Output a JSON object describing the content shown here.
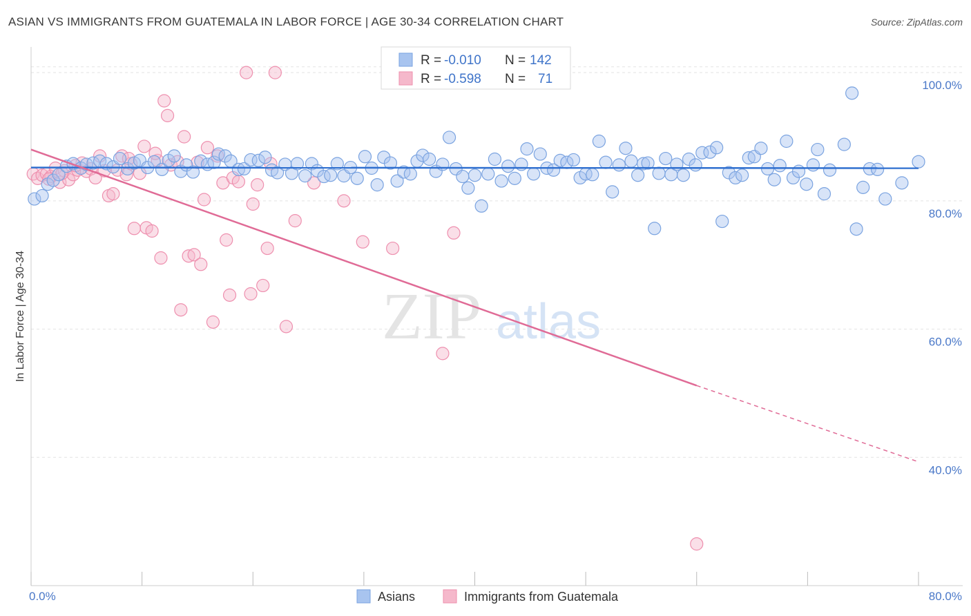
{
  "title": "ASIAN VS IMMIGRANTS FROM GUATEMALA IN LABOR FORCE | AGE 30-34 CORRELATION CHART",
  "source": "Source: ZipAtlas.com",
  "watermark": {
    "zip": "ZIP",
    "atlas": "atlas"
  },
  "colors": {
    "blue_fill": "#a8c4ef",
    "blue_stroke": "#7aa3e0",
    "blue_line": "#2f6fcf",
    "pink_fill": "#f5b8cb",
    "pink_stroke": "#ee8fae",
    "pink_line": "#e06b96",
    "axis_label": "#4a78c8",
    "grid": "#e3e3e3"
  },
  "chart_data": {
    "type": "scatter",
    "xlabel": "",
    "ylabel": "In Labor Force | Age 30-34",
    "xlim": [
      0,
      80
    ],
    "ylim": [
      20,
      104
    ],
    "x_tick_labels": [
      "0.0%",
      "80.0%"
    ],
    "y_ticks": [
      40,
      60,
      80,
      100
    ],
    "y_tick_labels": [
      "40.0%",
      "60.0%",
      "80.0%",
      "100.0%"
    ],
    "grid": "horizontal dashed",
    "legend_top": [
      {
        "r_label": "R = ",
        "r_value": "-0.010",
        "n_label": "N = ",
        "n_value": "142",
        "series": "Asians"
      },
      {
        "r_label": "R = ",
        "r_value": "-0.598",
        "n_label": "N = ",
        "n_value": "71",
        "series": "Immigrants from Guatemala"
      }
    ],
    "series": [
      {
        "name": "Asians",
        "color": "blue",
        "trend": {
          "x0": 0,
          "y0": 85.2,
          "x1": 80,
          "y1": 85.1
        },
        "points": [
          [
            0.3,
            80.3
          ],
          [
            1.0,
            80.8
          ],
          [
            1.5,
            82.6
          ],
          [
            2.0,
            83.2
          ],
          [
            2.5,
            84.1
          ],
          [
            3.2,
            85.4
          ],
          [
            3.8,
            85.8
          ],
          [
            4.5,
            85.1
          ],
          [
            5.0,
            85.7
          ],
          [
            5.6,
            85.9
          ],
          [
            6.2,
            86.2
          ],
          [
            6.8,
            85.8
          ],
          [
            7.4,
            85.3
          ],
          [
            8.0,
            86.6
          ],
          [
            8.7,
            85.0
          ],
          [
            9.3,
            85.9
          ],
          [
            9.8,
            86.3
          ],
          [
            10.5,
            85.2
          ],
          [
            11.1,
            86.1
          ],
          [
            11.8,
            84.9
          ],
          [
            12.4,
            86.3
          ],
          [
            12.9,
            87.0
          ],
          [
            13.5,
            84.6
          ],
          [
            14.0,
            85.6
          ],
          [
            14.6,
            84.5
          ],
          [
            15.3,
            86.2
          ],
          [
            15.9,
            85.7
          ],
          [
            16.5,
            86.0
          ],
          [
            16.9,
            87.3
          ],
          [
            17.5,
            87.0
          ],
          [
            18.0,
            86.2
          ],
          [
            18.7,
            84.9
          ],
          [
            19.2,
            85.0
          ],
          [
            19.8,
            86.4
          ],
          [
            20.5,
            86.3
          ],
          [
            21.1,
            86.8
          ],
          [
            21.7,
            84.8
          ],
          [
            22.2,
            84.4
          ],
          [
            22.9,
            85.7
          ],
          [
            23.5,
            84.3
          ],
          [
            24.0,
            85.8
          ],
          [
            24.7,
            83.9
          ],
          [
            25.3,
            85.8
          ],
          [
            25.8,
            84.7
          ],
          [
            26.4,
            83.8
          ],
          [
            27.0,
            84.0
          ],
          [
            27.6,
            85.8
          ],
          [
            28.2,
            83.9
          ],
          [
            28.8,
            85.2
          ],
          [
            29.4,
            83.5
          ],
          [
            30.1,
            86.9
          ],
          [
            30.7,
            85.1
          ],
          [
            31.2,
            82.5
          ],
          [
            31.8,
            86.8
          ],
          [
            32.4,
            85.9
          ],
          [
            33.0,
            83.1
          ],
          [
            33.6,
            84.5
          ],
          [
            34.2,
            84.2
          ],
          [
            34.8,
            86.2
          ],
          [
            35.3,
            87.1
          ],
          [
            35.9,
            86.5
          ],
          [
            36.5,
            84.6
          ],
          [
            37.1,
            85.7
          ],
          [
            37.7,
            89.9
          ],
          [
            38.3,
            85.0
          ],
          [
            38.9,
            83.8
          ],
          [
            39.4,
            82.0
          ],
          [
            40.0,
            84.0
          ],
          [
            40.6,
            79.2
          ],
          [
            41.2,
            84.2
          ],
          [
            41.8,
            86.5
          ],
          [
            42.4,
            83.1
          ],
          [
            43.0,
            85.4
          ],
          [
            43.6,
            83.5
          ],
          [
            44.2,
            85.7
          ],
          [
            44.7,
            88.1
          ],
          [
            45.3,
            84.2
          ],
          [
            45.9,
            87.3
          ],
          [
            46.5,
            85.1
          ],
          [
            47.1,
            84.8
          ],
          [
            47.7,
            86.3
          ],
          [
            48.3,
            86.0
          ],
          [
            48.9,
            86.4
          ],
          [
            49.5,
            83.6
          ],
          [
            50.0,
            84.2
          ],
          [
            50.6,
            84.1
          ],
          [
            51.2,
            89.3
          ],
          [
            51.8,
            86.0
          ],
          [
            52.4,
            81.4
          ],
          [
            53.0,
            85.6
          ],
          [
            53.6,
            88.2
          ],
          [
            54.1,
            86.2
          ],
          [
            54.7,
            84.0
          ],
          [
            55.2,
            85.8
          ],
          [
            55.6,
            85.9
          ],
          [
            56.2,
            75.7
          ],
          [
            56.6,
            84.3
          ],
          [
            57.2,
            86.6
          ],
          [
            57.7,
            84.1
          ],
          [
            58.2,
            85.7
          ],
          [
            58.8,
            84.0
          ],
          [
            59.3,
            86.5
          ],
          [
            59.9,
            85.6
          ],
          [
            60.5,
            87.5
          ],
          [
            61.2,
            87.6
          ],
          [
            61.8,
            88.3
          ],
          [
            62.3,
            76.8
          ],
          [
            62.9,
            84.4
          ],
          [
            63.5,
            83.6
          ],
          [
            64.1,
            84.0
          ],
          [
            64.7,
            86.7
          ],
          [
            65.2,
            86.9
          ],
          [
            65.8,
            88.2
          ],
          [
            66.4,
            85.0
          ],
          [
            67.0,
            83.3
          ],
          [
            67.5,
            85.5
          ],
          [
            68.1,
            89.3
          ],
          [
            68.7,
            83.6
          ],
          [
            69.2,
            84.6
          ],
          [
            69.9,
            82.6
          ],
          [
            70.5,
            85.6
          ],
          [
            70.9,
            88.0
          ],
          [
            71.5,
            81.1
          ],
          [
            72.0,
            84.8
          ],
          [
            73.3,
            88.8
          ],
          [
            74.0,
            96.8
          ],
          [
            74.4,
            75.6
          ],
          [
            75.0,
            82.1
          ],
          [
            75.6,
            85.0
          ],
          [
            76.3,
            84.9
          ],
          [
            77.0,
            80.3
          ],
          [
            78.5,
            82.8
          ],
          [
            80.0,
            86.1
          ]
        ]
      },
      {
        "name": "Immigrants from Guatemala",
        "color": "pink",
        "trend": {
          "x0": 0,
          "y0": 88.0,
          "x1": 60,
          "y1": 51.2,
          "dash_to_x": 80,
          "dash_to_y": 39.3
        },
        "points": [
          [
            0.2,
            84.2
          ],
          [
            0.6,
            83.5
          ],
          [
            1.0,
            84.0
          ],
          [
            1.4,
            84.2
          ],
          [
            1.8,
            83.8
          ],
          [
            2.2,
            85.1
          ],
          [
            2.6,
            82.9
          ],
          [
            3.0,
            84.7
          ],
          [
            3.4,
            83.3
          ],
          [
            3.8,
            84.1
          ],
          [
            4.2,
            84.8
          ],
          [
            4.6,
            85.9
          ],
          [
            5.0,
            84.6
          ],
          [
            5.4,
            85.0
          ],
          [
            5.8,
            83.6
          ],
          [
            6.2,
            87.0
          ],
          [
            6.6,
            84.7
          ],
          [
            7.0,
            80.8
          ],
          [
            7.4,
            81.1
          ],
          [
            7.8,
            84.8
          ],
          [
            8.2,
            87.0
          ],
          [
            8.6,
            84.1
          ],
          [
            9.0,
            85.8
          ],
          [
            9.3,
            75.7
          ],
          [
            9.8,
            84.3
          ],
          [
            10.2,
            88.5
          ],
          [
            10.4,
            75.8
          ],
          [
            10.9,
            75.3
          ],
          [
            11.4,
            86.3
          ],
          [
            11.7,
            71.1
          ],
          [
            12.0,
            95.6
          ],
          [
            12.3,
            93.3
          ],
          [
            12.6,
            85.6
          ],
          [
            13.2,
            86.1
          ],
          [
            13.5,
            63.0
          ],
          [
            13.8,
            90.0
          ],
          [
            14.2,
            71.4
          ],
          [
            14.7,
            71.6
          ],
          [
            15.0,
            86.0
          ],
          [
            15.3,
            70.1
          ],
          [
            15.6,
            80.2
          ],
          [
            15.9,
            88.3
          ],
          [
            16.4,
            61.1
          ],
          [
            16.8,
            87.0
          ],
          [
            17.3,
            82.8
          ],
          [
            17.6,
            73.9
          ],
          [
            17.9,
            65.3
          ],
          [
            18.2,
            83.6
          ],
          [
            18.7,
            83.0
          ],
          [
            19.4,
            100.0
          ],
          [
            19.8,
            65.5
          ],
          [
            20.0,
            79.5
          ],
          [
            20.4,
            82.5
          ],
          [
            20.9,
            66.8
          ],
          [
            21.3,
            72.6
          ],
          [
            21.6,
            85.8
          ],
          [
            22.0,
            100.0
          ],
          [
            23.0,
            60.4
          ],
          [
            23.8,
            76.9
          ],
          [
            25.5,
            82.8
          ],
          [
            28.2,
            80.0
          ],
          [
            29.9,
            73.6
          ],
          [
            32.6,
            72.6
          ],
          [
            37.1,
            56.2
          ],
          [
            38.1,
            75.0
          ],
          [
            60.0,
            26.5
          ],
          [
            1.6,
            83.4
          ],
          [
            2.8,
            84.3
          ],
          [
            4.0,
            85.5
          ],
          [
            8.8,
            86.6
          ],
          [
            11.2,
            87.4
          ]
        ]
      }
    ]
  }
}
